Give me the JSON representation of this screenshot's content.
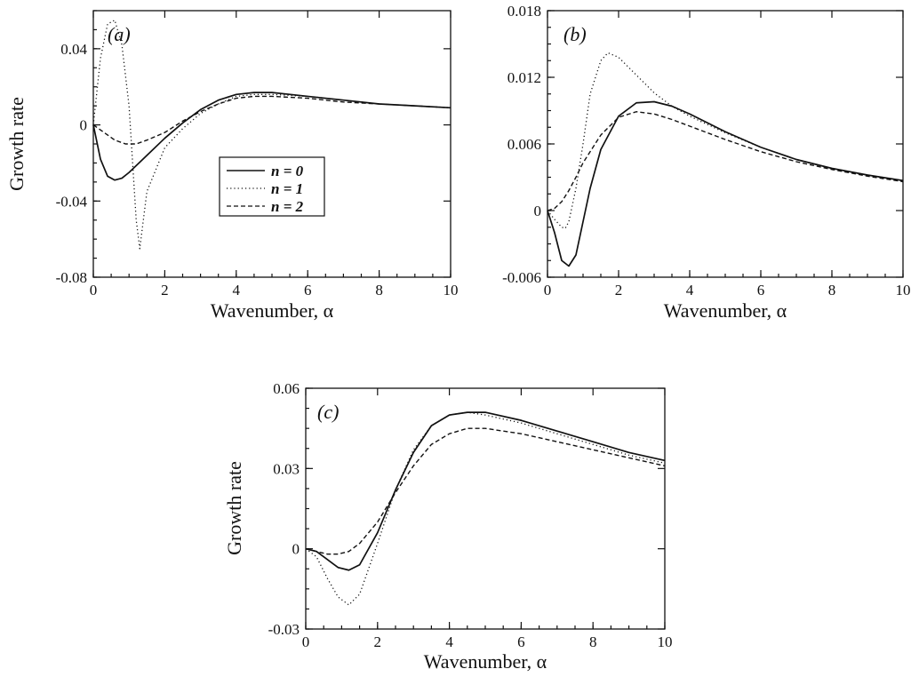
{
  "chart_data": [
    {
      "type": "line",
      "panel_label": "(a)",
      "xlabel": "Wavenumber, α",
      "ylabel": "Growth rate",
      "xlim": [
        0,
        10
      ],
      "ylim": [
        -0.08,
        0.06
      ],
      "xticks": [
        0,
        2,
        4,
        6,
        8,
        10
      ],
      "xtick_labels": [
        "0",
        "2",
        "4",
        "6",
        "8",
        "10"
      ],
      "yticks": [
        -0.08,
        -0.04,
        0,
        0.04
      ],
      "ytick_labels": [
        "-0.08",
        "-0.04",
        "0",
        "0.04"
      ],
      "legend": {
        "placement": "center-left",
        "entries": [
          {
            "series": "n0",
            "label": "n = 0"
          },
          {
            "series": "n1",
            "label": "n = 1"
          },
          {
            "series": "n2",
            "label": "n = 2"
          }
        ]
      },
      "series": [
        {
          "id": "n0",
          "name": "n = 0",
          "style": "solid",
          "x": [
            0,
            0.2,
            0.4,
            0.6,
            0.8,
            1.0,
            1.5,
            2.0,
            2.5,
            3.0,
            3.5,
            4.0,
            4.5,
            5.0,
            6.0,
            7.0,
            8.0,
            9.0,
            10.0
          ],
          "y": [
            0,
            -0.018,
            -0.027,
            -0.029,
            -0.028,
            -0.025,
            -0.016,
            -0.007,
            0.001,
            0.008,
            0.013,
            0.016,
            0.017,
            0.017,
            0.015,
            0.013,
            0.011,
            0.01,
            0.009
          ]
        },
        {
          "id": "n1",
          "name": "n = 1",
          "style": "dotted",
          "x": [
            0,
            0.2,
            0.4,
            0.6,
            0.8,
            1.0,
            1.1,
            1.2,
            1.3,
            1.5,
            2.0,
            2.5,
            3.0,
            3.5,
            4.0,
            4.5,
            5.0,
            6.0,
            7.0,
            8.0,
            9.0,
            10.0
          ],
          "y": [
            0,
            0.035,
            0.053,
            0.055,
            0.042,
            0.01,
            -0.02,
            -0.05,
            -0.065,
            -0.035,
            -0.012,
            -0.002,
            0.006,
            0.011,
            0.015,
            0.016,
            0.016,
            0.015,
            0.013,
            0.011,
            0.01,
            0.009
          ]
        },
        {
          "id": "n2",
          "name": "n = 2",
          "style": "dashed",
          "x": [
            0,
            0.3,
            0.6,
            0.9,
            1.2,
            1.5,
            2.0,
            2.5,
            3.0,
            3.5,
            4.0,
            4.5,
            5.0,
            6.0,
            7.0,
            8.0,
            9.0,
            10.0
          ],
          "y": [
            0,
            -0.004,
            -0.008,
            -0.01,
            -0.01,
            -0.008,
            -0.004,
            0.002,
            0.007,
            0.011,
            0.014,
            0.015,
            0.015,
            0.014,
            0.012,
            0.011,
            0.01,
            0.009
          ]
        }
      ]
    },
    {
      "type": "line",
      "panel_label": "(b)",
      "xlabel": "Wavenumber, α",
      "ylabel": "",
      "xlim": [
        0,
        10
      ],
      "ylim": [
        -0.006,
        0.018
      ],
      "xticks": [
        0,
        2,
        4,
        6,
        8,
        10
      ],
      "xtick_labels": [
        "0",
        "2",
        "4",
        "6",
        "8",
        "10"
      ],
      "yticks": [
        -0.006,
        0,
        0.006,
        0.012,
        0.018
      ],
      "ytick_labels": [
        "-0.006",
        "0",
        "0.006",
        "0.012",
        "0.018"
      ],
      "series": [
        {
          "id": "n0",
          "name": "n = 0",
          "style": "solid",
          "x": [
            0,
            0.2,
            0.4,
            0.6,
            0.8,
            1.0,
            1.2,
            1.5,
            2.0,
            2.5,
            3.0,
            3.5,
            4.0,
            5.0,
            6.0,
            7.0,
            8.0,
            9.0,
            10.0
          ],
          "y": [
            0,
            -0.002,
            -0.0045,
            -0.005,
            -0.004,
            -0.001,
            0.002,
            0.0055,
            0.0085,
            0.0097,
            0.0098,
            0.0094,
            0.0087,
            0.0071,
            0.0057,
            0.0046,
            0.0038,
            0.0032,
            0.0027
          ]
        },
        {
          "id": "n1",
          "name": "n = 1",
          "style": "dotted",
          "x": [
            0,
            0.2,
            0.4,
            0.5,
            0.6,
            0.8,
            1.0,
            1.2,
            1.5,
            1.7,
            2.0,
            2.5,
            3.0,
            3.5,
            4.0,
            5.0,
            6.0,
            7.0,
            8.0,
            9.0,
            10.0
          ],
          "y": [
            0,
            -0.0008,
            -0.0015,
            -0.0016,
            -0.001,
            0.002,
            0.006,
            0.0105,
            0.0135,
            0.0142,
            0.0138,
            0.0122,
            0.0106,
            0.0094,
            0.0085,
            0.007,
            0.0057,
            0.0046,
            0.0038,
            0.0032,
            0.0027
          ]
        },
        {
          "id": "n2",
          "name": "n = 2",
          "style": "dashed",
          "x": [
            0,
            0.2,
            0.4,
            0.6,
            0.8,
            1.0,
            1.5,
            2.0,
            2.5,
            3.0,
            3.5,
            4.0,
            5.0,
            6.0,
            7.0,
            8.0,
            9.0,
            10.0
          ],
          "y": [
            0,
            0.0002,
            0.0008,
            0.0018,
            0.003,
            0.0043,
            0.0068,
            0.0084,
            0.0089,
            0.0087,
            0.0082,
            0.0076,
            0.0064,
            0.0053,
            0.0044,
            0.0037,
            0.0031,
            0.0026
          ]
        }
      ]
    },
    {
      "type": "line",
      "panel_label": "(c)",
      "xlabel": "Wavenumber, α",
      "ylabel": "Growth rate",
      "xlim": [
        0,
        10
      ],
      "ylim": [
        -0.03,
        0.06
      ],
      "xticks": [
        0,
        2,
        4,
        6,
        8,
        10
      ],
      "xtick_labels": [
        "0",
        "2",
        "4",
        "6",
        "8",
        "10"
      ],
      "yticks": [
        -0.03,
        0,
        0.03,
        0.06
      ],
      "ytick_labels": [
        "-0.03",
        "0",
        "0.03",
        "0.06"
      ],
      "series": [
        {
          "id": "n0",
          "name": "n = 0",
          "style": "solid",
          "x": [
            0,
            0.3,
            0.6,
            0.9,
            1.2,
            1.5,
            2.0,
            2.5,
            3.0,
            3.5,
            4.0,
            4.5,
            5.0,
            6.0,
            7.0,
            8.0,
            9.0,
            10.0
          ],
          "y": [
            0,
            -0.001,
            -0.004,
            -0.007,
            -0.008,
            -0.006,
            0.006,
            0.022,
            0.036,
            0.046,
            0.05,
            0.051,
            0.051,
            0.048,
            0.044,
            0.04,
            0.036,
            0.033
          ]
        },
        {
          "id": "n1",
          "name": "n = 1",
          "style": "dotted",
          "x": [
            0,
            0.3,
            0.6,
            0.9,
            1.2,
            1.5,
            2.0,
            2.5,
            3.0,
            3.5,
            4.0,
            4.5,
            5.0,
            6.0,
            7.0,
            8.0,
            9.0,
            10.0
          ],
          "y": [
            0,
            -0.003,
            -0.011,
            -0.018,
            -0.021,
            -0.017,
            0.002,
            0.022,
            0.037,
            0.046,
            0.05,
            0.051,
            0.05,
            0.047,
            0.043,
            0.039,
            0.035,
            0.032
          ]
        },
        {
          "id": "n2",
          "name": "n = 2",
          "style": "dashed",
          "x": [
            0,
            0.3,
            0.6,
            0.9,
            1.2,
            1.5,
            2.0,
            2.5,
            3.0,
            3.5,
            4.0,
            4.5,
            5.0,
            6.0,
            7.0,
            8.0,
            9.0,
            10.0
          ],
          "y": [
            0,
            -0.001,
            -0.002,
            -0.002,
            -0.001,
            0.002,
            0.01,
            0.021,
            0.031,
            0.039,
            0.043,
            0.045,
            0.045,
            0.043,
            0.04,
            0.037,
            0.034,
            0.031
          ]
        }
      ]
    }
  ]
}
